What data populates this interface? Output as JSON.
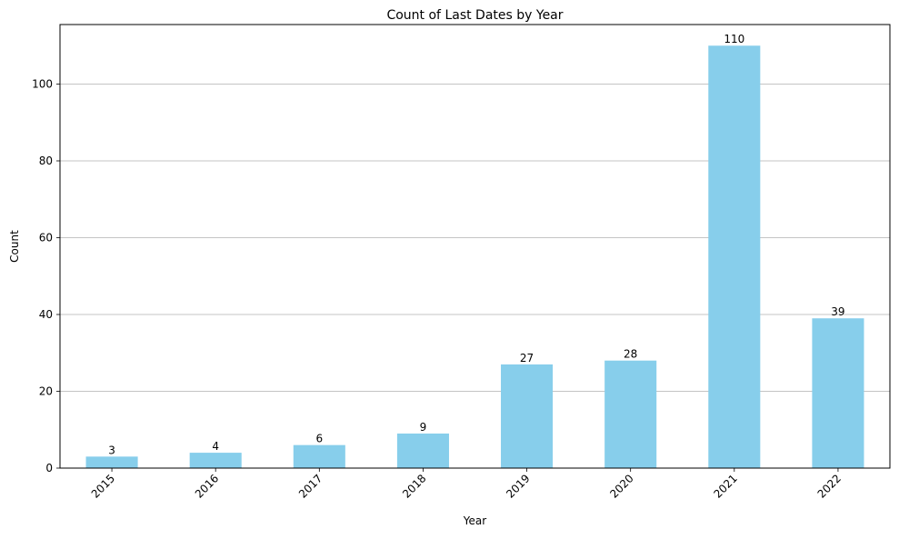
{
  "chart_data": {
    "type": "bar",
    "title": "Count of Last Dates by Year",
    "xlabel": "Year",
    "ylabel": "Count",
    "categories": [
      "2015",
      "2016",
      "2017",
      "2018",
      "2019",
      "2020",
      "2021",
      "2022"
    ],
    "values": [
      3,
      4,
      6,
      9,
      27,
      28,
      110,
      39
    ],
    "data_labels": [
      "3",
      "4",
      "6",
      "9",
      "27",
      "28",
      "110",
      "39"
    ],
    "ylim": [
      0,
      115.5
    ],
    "yticks": [
      0,
      20,
      40,
      60,
      80,
      100
    ],
    "ytick_labels": [
      "0",
      "20",
      "40",
      "60",
      "80",
      "100"
    ],
    "grid": "y-axis only",
    "legend": "none",
    "x_tick_rotation_deg": 45,
    "colors": {
      "bar": "#87ceeb",
      "grid": "#b0b0b0",
      "axis": "#000000",
      "text": "#000000"
    }
  }
}
